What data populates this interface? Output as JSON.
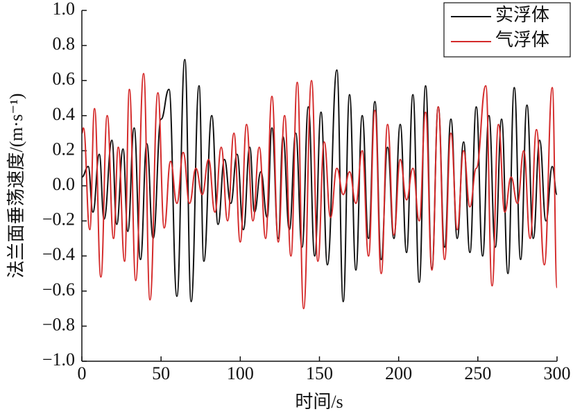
{
  "chart_data": {
    "type": "line",
    "xlabel": "时间/s",
    "ylabel": "法兰面垂荡速度/(m·s⁻¹)",
    "xlim": [
      0,
      300
    ],
    "ylim": [
      -1.0,
      1.0
    ],
    "xticks": [
      0,
      50,
      100,
      150,
      200,
      250,
      300
    ],
    "yticks": [
      {
        "value": -1.0,
        "label": "−1.0"
      },
      {
        "value": -0.8,
        "label": "−0.8"
      },
      {
        "value": -0.6,
        "label": "−0.6"
      },
      {
        "value": -0.4,
        "label": "−0.4"
      },
      {
        "value": -0.2,
        "label": "−0.2"
      },
      {
        "value": 0.0,
        "label": "0.0"
      },
      {
        "value": 0.2,
        "label": "0.2"
      },
      {
        "value": 0.4,
        "label": "0.4"
      },
      {
        "value": 0.6,
        "label": "0.6"
      },
      {
        "value": 0.8,
        "label": "0.8"
      },
      {
        "value": 1.0,
        "label": "1.0"
      }
    ],
    "legend": "upper right",
    "series": [
      {
        "name": "实浮体",
        "color": "#111111",
        "x": [
          0,
          4,
          7,
          11,
          14,
          19,
          22,
          26,
          29,
          33,
          37,
          41,
          45,
          50,
          55,
          60,
          65,
          69,
          74,
          77,
          82,
          86,
          90,
          94,
          98,
          102,
          106,
          109,
          113,
          117,
          120,
          124,
          127,
          131,
          135,
          139,
          143,
          147,
          151,
          155,
          161,
          165,
          169,
          173,
          177,
          181,
          185,
          189,
          193,
          197,
          201,
          205,
          209,
          213,
          217,
          221,
          225,
          229,
          233,
          237,
          241,
          245,
          249,
          253,
          257,
          261,
          265,
          269,
          273,
          277,
          281,
          285,
          289,
          293,
          297,
          300
        ],
        "values": [
          0.05,
          0.11,
          -0.15,
          0.18,
          -0.19,
          0.26,
          -0.22,
          0.21,
          -0.26,
          0.33,
          -0.42,
          0.24,
          -0.3,
          0.38,
          0.55,
          -0.63,
          0.72,
          -0.66,
          0.57,
          -0.43,
          0.4,
          -0.22,
          0.15,
          -0.1,
          0.18,
          -0.25,
          0.22,
          -0.15,
          0.08,
          -0.18,
          0.33,
          -0.3,
          0.28,
          -0.25,
          0.3,
          -0.35,
          0.45,
          -0.4,
          0.42,
          -0.45,
          0.66,
          -0.66,
          0.52,
          -0.48,
          0.4,
          -0.3,
          0.48,
          -0.42,
          0.22,
          -0.3,
          0.35,
          -0.38,
          0.52,
          -0.55,
          0.57,
          -0.47,
          0.45,
          -0.35,
          0.38,
          -0.3,
          0.25,
          -0.38,
          0.45,
          -0.4,
          0.4,
          -0.35,
          0.38,
          -0.5,
          0.56,
          -0.42,
          0.46,
          -0.3,
          0.26,
          -0.2,
          0.11,
          -0.05
        ]
      },
      {
        "name": "气浮体",
        "color": "#d42a2a",
        "x": [
          0,
          1,
          5,
          8,
          12,
          16,
          20,
          23,
          27,
          30,
          34,
          39,
          43,
          48,
          52,
          56,
          60,
          64,
          68,
          72,
          76,
          80,
          84,
          88,
          92,
          96,
          100,
          104,
          108,
          112,
          116,
          120,
          124,
          128,
          132,
          136,
          140,
          145,
          149,
          153,
          157,
          161,
          165,
          169,
          173,
          177,
          181,
          185,
          189,
          193,
          197,
          201,
          205,
          209,
          213,
          217,
          221,
          225,
          229,
          233,
          237,
          241,
          245,
          249,
          255,
          259,
          263,
          267,
          271,
          275,
          279,
          283,
          287,
          292,
          297,
          300
        ],
        "values": [
          0.3,
          0.33,
          -0.25,
          0.44,
          -0.52,
          0.4,
          -0.3,
          0.22,
          -0.43,
          0.55,
          -0.54,
          0.64,
          -0.65,
          0.53,
          -0.24,
          0.14,
          -0.1,
          0.19,
          -0.1,
          0.1,
          -0.05,
          0.15,
          -0.15,
          0.22,
          -0.2,
          0.3,
          -0.32,
          0.35,
          -0.2,
          0.22,
          -0.3,
          0.51,
          -0.32,
          0.4,
          -0.4,
          0.59,
          -0.7,
          0.6,
          -0.43,
          0.25,
          -0.18,
          0.1,
          -0.05,
          0.08,
          -0.1,
          0.2,
          -0.4,
          0.43,
          -0.5,
          0.35,
          -0.28,
          0.15,
          -0.08,
          0.1,
          -0.2,
          0.42,
          -0.48,
          0.45,
          -0.42,
          0.3,
          -0.25,
          0.2,
          -0.12,
          0.1,
          0.57,
          -0.57,
          0.35,
          -0.15,
          0.05,
          -0.1,
          0.2,
          -0.3,
          0.32,
          -0.45,
          0.56,
          -0.58
        ]
      }
    ]
  }
}
